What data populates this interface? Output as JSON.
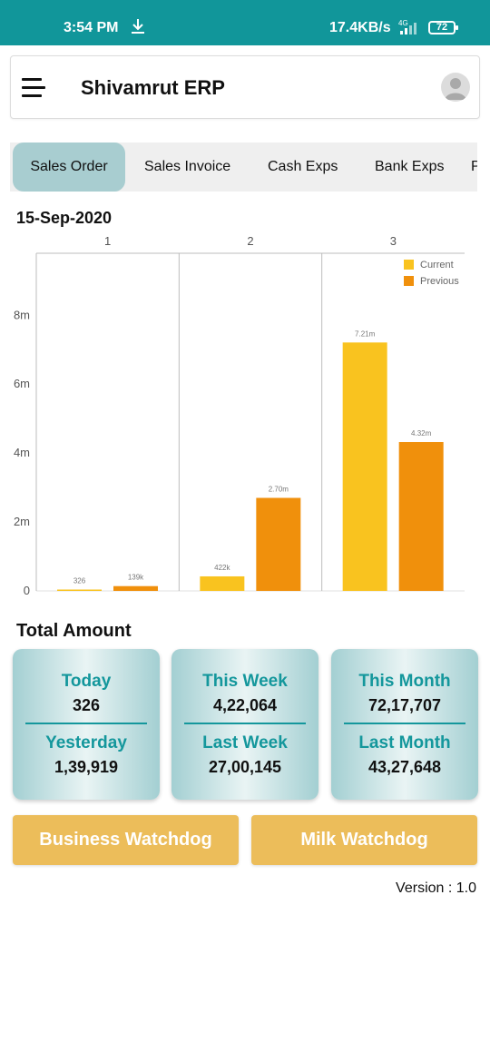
{
  "status_bar": {
    "time": "3:54 PM",
    "speed": "17.4KB/s",
    "network": "4G",
    "battery": "72"
  },
  "app_bar": {
    "title": "Shivamrut ERP"
  },
  "tabs": [
    {
      "label": "Sales Order",
      "active": true
    },
    {
      "label": "Sales Invoice",
      "active": false
    },
    {
      "label": "Cash Exps",
      "active": false
    },
    {
      "label": "Bank Exps",
      "active": false
    },
    {
      "label": "P",
      "active": false
    }
  ],
  "date": "15-Sep-2020",
  "chart_data": {
    "type": "bar",
    "categories": [
      "1",
      "2",
      "3"
    ],
    "series": [
      {
        "name": "Current",
        "color": "#f9c31f",
        "values": [
          326,
          422000,
          7210000
        ],
        "labels": [
          "326",
          "422k",
          "7.21m"
        ]
      },
      {
        "name": "Previous",
        "color": "#f0900c",
        "values": [
          139000,
          2700000,
          4320000
        ],
        "labels": [
          "139k",
          "2.70m",
          "4.32m"
        ]
      }
    ],
    "yticks": [
      {
        "value": 0,
        "label": "0"
      },
      {
        "value": 2000000,
        "label": "2m"
      },
      {
        "value": 4000000,
        "label": "4m"
      },
      {
        "value": 6000000,
        "label": "6m"
      },
      {
        "value": 8000000,
        "label": "8m"
      }
    ],
    "ylim": [
      0,
      9800000
    ],
    "legend_position": "top-right"
  },
  "totals": {
    "title": "Total Amount",
    "cards": [
      {
        "top_label": "Today",
        "top_value": "326",
        "bottom_label": "Yesterday",
        "bottom_value": "1,39,919"
      },
      {
        "top_label": "This Week",
        "top_value": "4,22,064",
        "bottom_label": "Last Week",
        "bottom_value": "27,00,145"
      },
      {
        "top_label": "This Month",
        "top_value": "72,17,707",
        "bottom_label": "Last Month",
        "bottom_value": "43,27,648"
      }
    ]
  },
  "buttons": {
    "business": "Business Watchdog",
    "milk": "Milk Watchdog"
  },
  "version": "Version : 1.0"
}
